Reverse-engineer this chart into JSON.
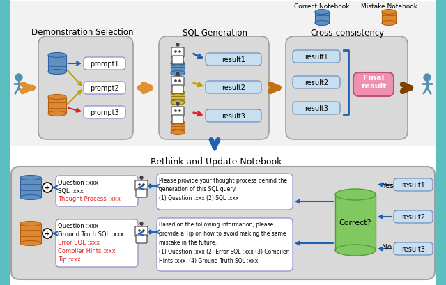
{
  "colors": {
    "bg": "#ffffff",
    "teal": "#5bbfbf",
    "panel_gray": "#d9d9d9",
    "panel_border": "#a0a0a0",
    "blue_db": "#6090c0",
    "blue_db_ec": "#3060a0",
    "orange_db": "#e08830",
    "orange_db_ec": "#b06010",
    "result_box_fc": "#c8dff0",
    "result_box_ec": "#7090c0",
    "prompt_box_fc": "#ffffff",
    "prompt_box_ec": "#8888bb",
    "pink_fc": "#f090b0",
    "pink_ec": "#c05080",
    "green_cyl": "#80c860",
    "green_cyl_ec": "#50a030",
    "arrow_orange": "#e09030",
    "arrow_dark": "#804000",
    "arrow_blue": "#2060b0",
    "arrow_red": "#e02020",
    "arrow_gold": "#c0a000",
    "text_red": "#e02020",
    "robot_fc": "#ffffff",
    "robot_ec": "#404040",
    "legend_correct": "#6090c0",
    "legend_mistake": "#e08830"
  },
  "sections": [
    "Demonstration Selection",
    "SQL Generation",
    "Cross-consistency"
  ],
  "bottom_title": "Rethink and Update Notebook",
  "prompts": [
    "prompt1",
    "prompt2",
    "prompt3"
  ],
  "results": [
    "result1",
    "result2",
    "result3"
  ],
  "legend": [
    "Correct Notebook",
    "Mistake Notebook"
  ],
  "correct_lines": [
    "Question :xxx",
    "SQL :xxx",
    "Thought Process :xxx"
  ],
  "mistake_lines": [
    "Question :xxx",
    "Ground Truth SQL :xxx",
    "Error SQL :xxx",
    "Compiler Hints :xxx",
    "Tip :xxx"
  ],
  "prompt1_lines": [
    "Please provide your thought process behind the",
    "generation of this SQL query.",
    "(1) Question :xxx (2) SQL :xxx"
  ],
  "prompt2_lines": [
    "Based on the following information, please",
    "provide a Tip on how to avoid making the same",
    "mistake in the future.",
    "(1) Question :xxx (2) Error SQL :xxx (3) Compiler",
    "Hints :xxx  (4) Ground Truth SQL :xxx"
  ]
}
